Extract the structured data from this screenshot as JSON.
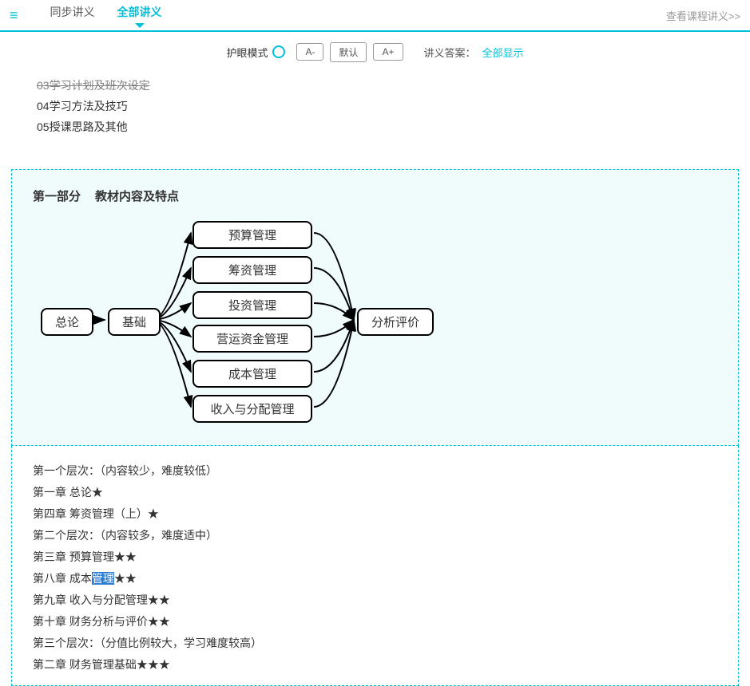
{
  "topbar": {
    "tabs": [
      {
        "label": "同步讲义",
        "active": false
      },
      {
        "label": "全部讲义",
        "active": true
      }
    ],
    "viewLink": "查看课程讲义>>"
  },
  "toolbar": {
    "eyecare": "护眼模式",
    "btnSmall": "A-",
    "btnDefault": "默认",
    "btnLarge": "A+",
    "answerLabel": "讲义答案：",
    "answerLink": "全部显示"
  },
  "prelines": {
    "l1": "03学习计划及班次设定",
    "l2": "04学习方法及技巧",
    "l3": "05授课思路及其他"
  },
  "panel1": {
    "title_a": "第一部分",
    "title_b": "教材内容及特点",
    "flow": {
      "n_gen": "总论",
      "n_base": "基础",
      "mids": [
        "预算管理",
        "筹资管理",
        "投资管理",
        "营运资金管理",
        "成本管理",
        "收入与分配管理"
      ],
      "n_eval": "分析评价",
      "colors": {
        "node_border": "#000000",
        "node_bg": "#ffffff"
      }
    }
  },
  "panel2": {
    "lines": [
      {
        "t": "第一个层次：（内容较少，难度较低）"
      },
      {
        "t": "第一章 总论★"
      },
      {
        "t": "第四章 筹资管理（上）★"
      },
      {
        "t": "第二个层次：（内容较多，难度适中）"
      },
      {
        "t": "第三章 预算管理★★"
      },
      {
        "pre": "第八章 成本",
        "hl": "管理",
        "post": "★★"
      },
      {
        "t": "第九章 收入与分配管理★★"
      },
      {
        "t": "第十章 财务分析与评价★★"
      },
      {
        "t": "第三个层次：（分值比例较大，学习难度较高）"
      },
      {
        "t": "第二章 财务管理基础★★★"
      }
    ]
  }
}
